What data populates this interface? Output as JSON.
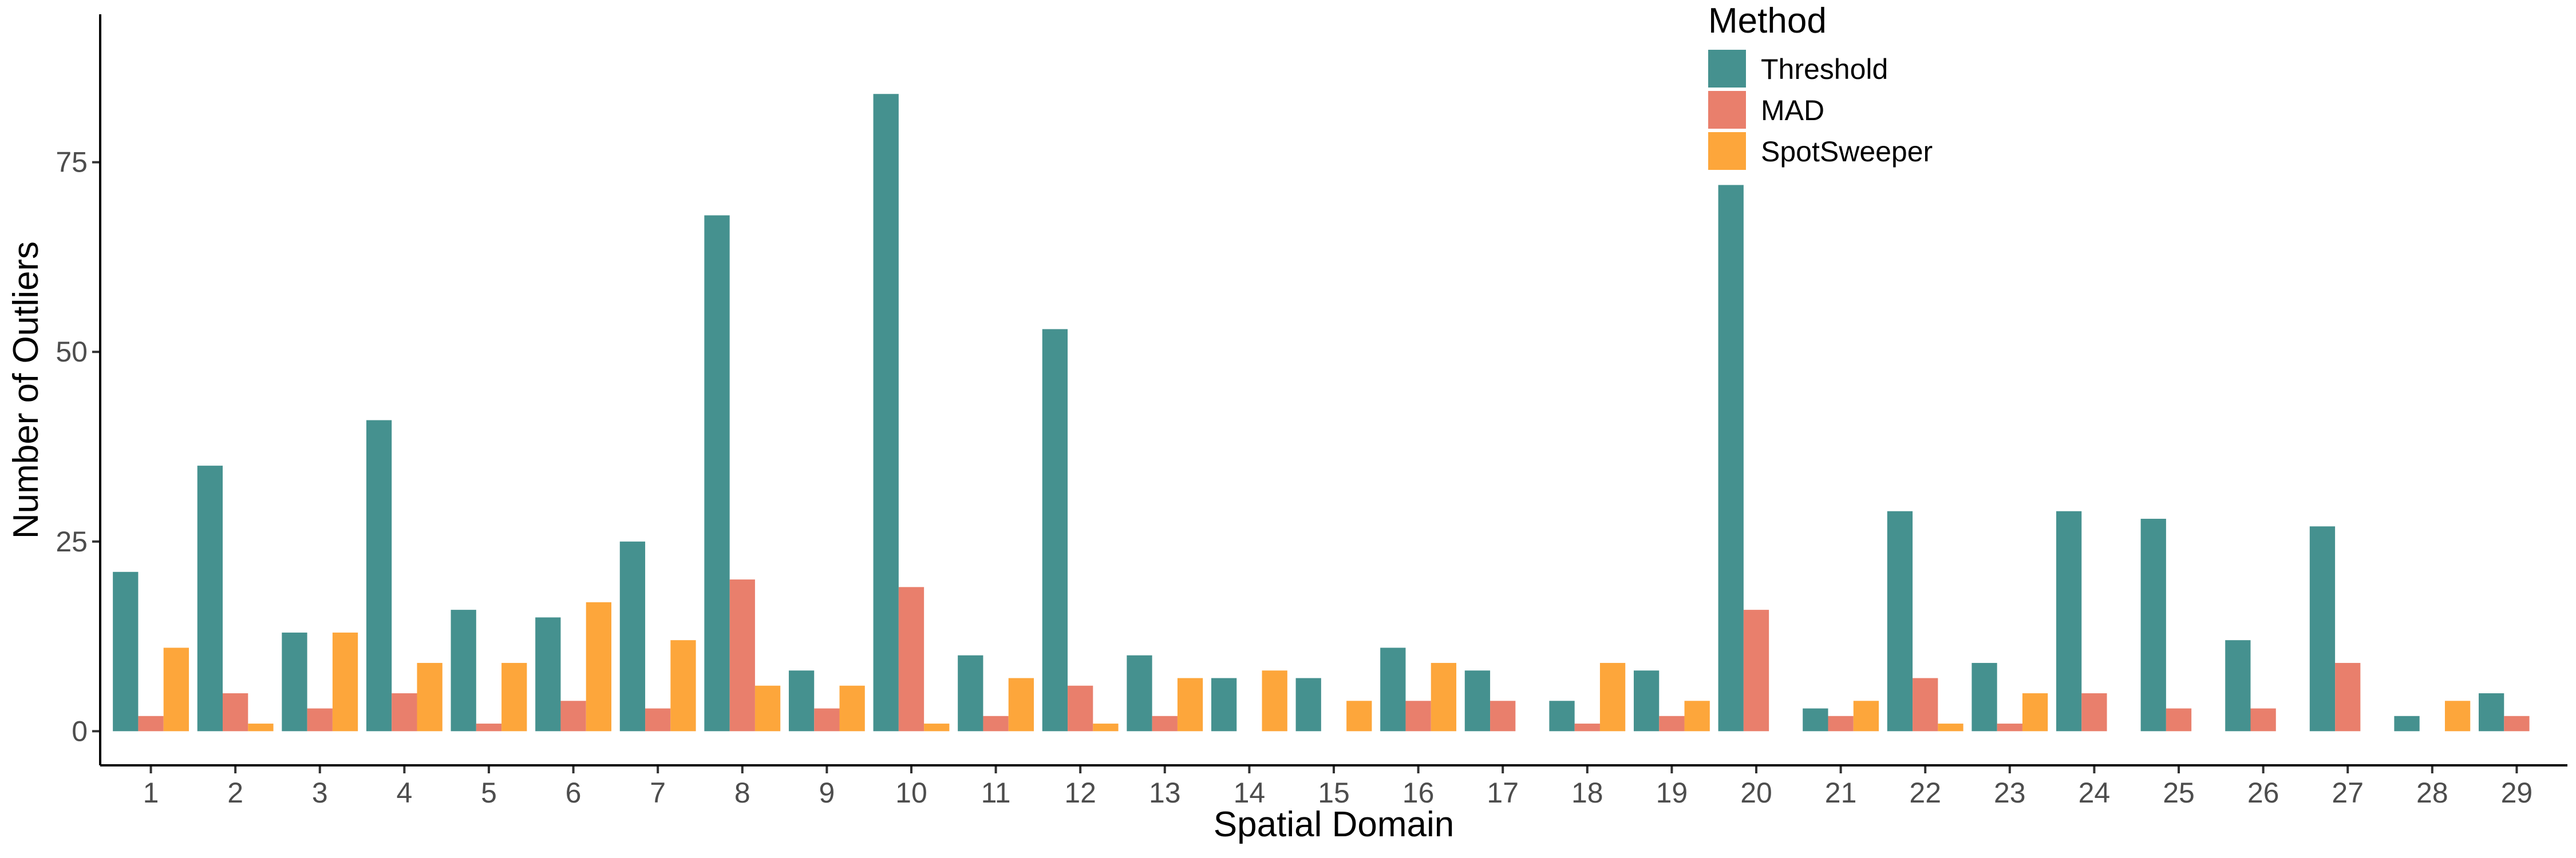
{
  "chart_data": {
    "type": "bar",
    "xlabel": "Spatial Domain",
    "ylabel": "Number of Outliers",
    "ylim": [
      -4.5,
      94.5
    ],
    "yticks": [
      0,
      25,
      50,
      75
    ],
    "grid": false,
    "legend": {
      "title": "Method",
      "placement": "top-right"
    },
    "categories": [
      "1",
      "2",
      "3",
      "4",
      "5",
      "6",
      "7",
      "8",
      "9",
      "10",
      "11",
      "12",
      "13",
      "14",
      "15",
      "16",
      "17",
      "18",
      "19",
      "20",
      "21",
      "22",
      "23",
      "24",
      "25",
      "26",
      "27",
      "28",
      "29"
    ],
    "series": [
      {
        "name": "Threshold",
        "color": "#45918f",
        "values": [
          21,
          35,
          13,
          41,
          16,
          15,
          25,
          68,
          8,
          84,
          10,
          53,
          10,
          7,
          7,
          11,
          8,
          4,
          8,
          72,
          3,
          29,
          9,
          29,
          28,
          12,
          27,
          2,
          5
        ]
      },
      {
        "name": "MAD",
        "color": "#e97f6c",
        "values": [
          2,
          5,
          3,
          5,
          1,
          4,
          3,
          20,
          3,
          19,
          2,
          6,
          2,
          null,
          null,
          4,
          4,
          1,
          2,
          16,
          2,
          7,
          1,
          5,
          3,
          3,
          9,
          null,
          2
        ]
      },
      {
        "name": "SpotSweeper",
        "color": "#fda63b",
        "values": [
          11,
          1,
          13,
          9,
          9,
          17,
          12,
          6,
          6,
          1,
          7,
          1,
          7,
          8,
          4,
          9,
          null,
          9,
          4,
          null,
          4,
          1,
          5,
          null,
          null,
          null,
          null,
          4,
          null
        ]
      }
    ]
  }
}
